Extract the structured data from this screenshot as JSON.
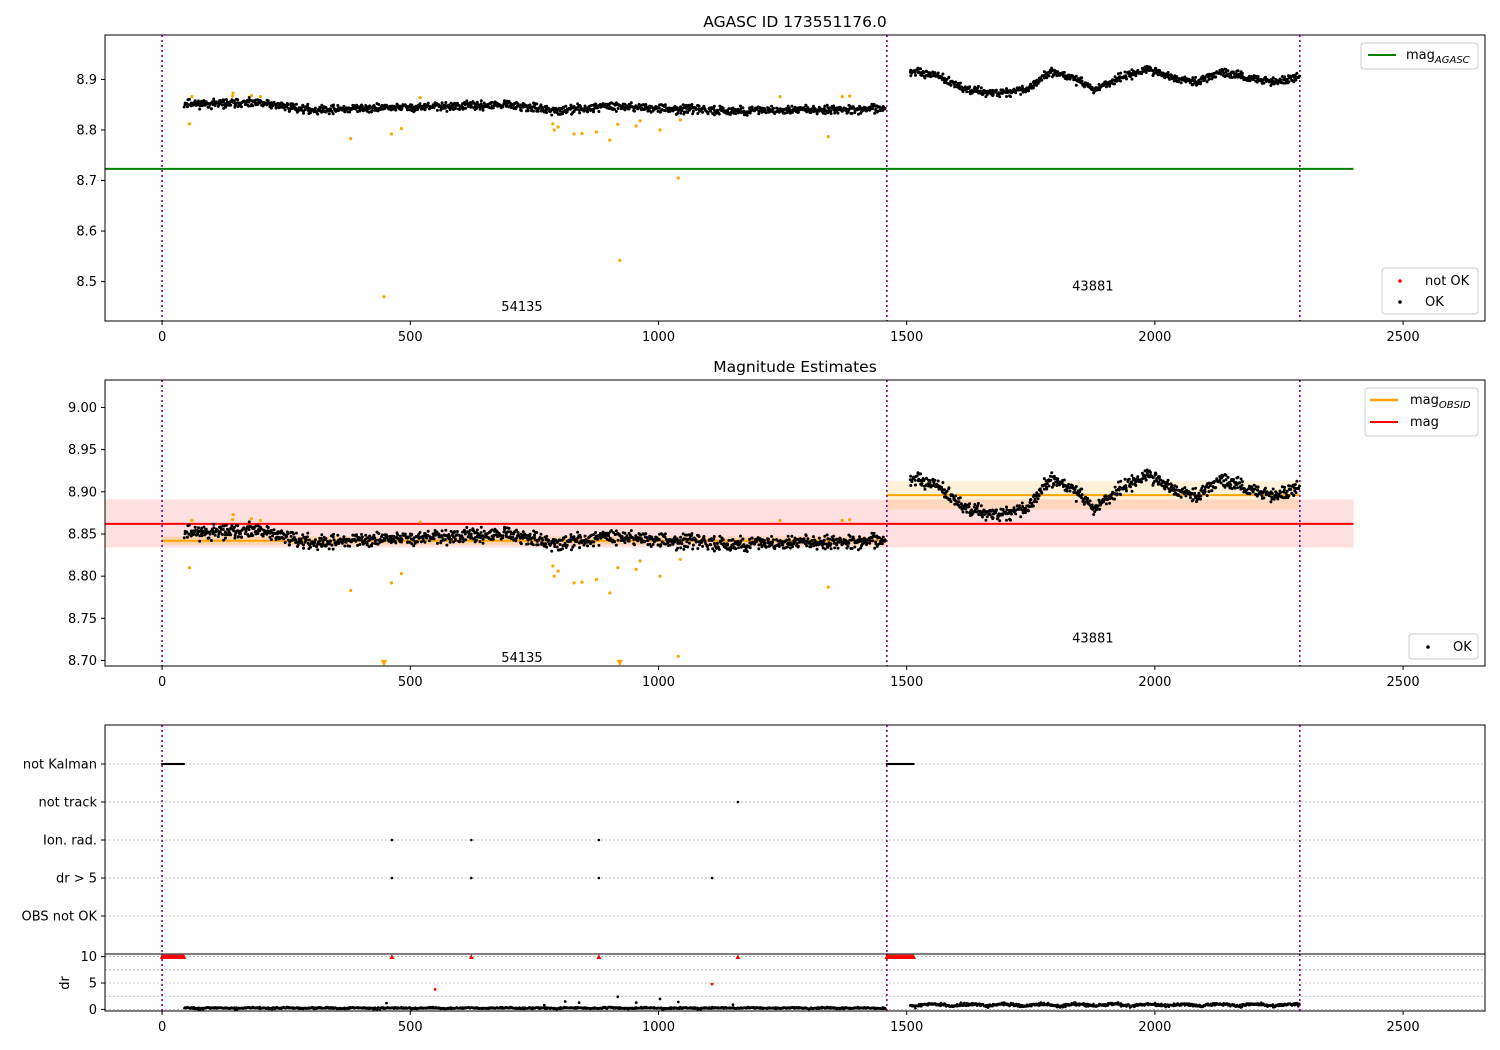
{
  "chart_data": [
    {
      "type": "scatter",
      "title": "AGASC ID 173551176.0",
      "xlabel": "",
      "ylabel": "",
      "xlim": [
        -115,
        2665
      ],
      "ylim": [
        8.422,
        8.988
      ],
      "xticks": [
        0,
        500,
        1000,
        1500,
        2000,
        2500
      ],
      "yticks": [
        8.5,
        8.6,
        8.7,
        8.8,
        8.9
      ],
      "ytick_labels": [
        "8.5",
        "8.6",
        "8.7",
        "8.8",
        "8.9"
      ],
      "vlines": [
        0,
        1460,
        2292
      ],
      "grid": false,
      "legends": [
        {
          "loc": "upper-right",
          "entries": [
            {
              "label": "mag",
              "sub": "AGASC",
              "color": "#008000",
              "kind": "line"
            }
          ]
        },
        {
          "loc": "lower-right",
          "entries": [
            {
              "label": "not OK",
              "color": "#ff0000",
              "kind": "dot"
            },
            {
              "label": "OK",
              "color": "#000000",
              "kind": "dot"
            }
          ]
        }
      ],
      "hlines": [
        {
          "name": "mag_AGASC",
          "y": 8.723,
          "x": [
            -115,
            2400
          ],
          "color": "#008000"
        }
      ],
      "obsids": [
        {
          "label": "54135",
          "x": 725,
          "y": 8.45
        },
        {
          "label": "43881",
          "x": 1875,
          "y": 8.49
        }
      ],
      "series": [
        {
          "color": "#000000",
          "segments": [
            {
              "x0": 45,
              "x1": 1458,
              "base": 8.845,
              "amp": 0.005,
              "noise": 0.007,
              "trend": [
                [
                  45,
                  8.852
                ],
                [
                  200,
                  8.853
                ],
                [
                  300,
                  8.84
                ],
                [
                  500,
                  8.845
                ],
                [
                  700,
                  8.849
                ],
                [
                  800,
                  8.838
                ],
                [
                  900,
                  8.848
                ],
                [
                  1000,
                  8.843
                ],
                [
                  1150,
                  8.838
                ],
                [
                  1300,
                  8.84
                ],
                [
                  1458,
                  8.842
                ]
              ]
            },
            {
              "x0": 1507,
              "x1": 2292,
              "base": 8.9,
              "noise": 0.007,
              "trend": [
                [
                  1507,
                  8.915
                ],
                [
                  1560,
                  8.908
                ],
                [
                  1620,
                  8.88
                ],
                [
                  1680,
                  8.872
                ],
                [
                  1740,
                  8.88
                ],
                [
                  1790,
                  8.915
                ],
                [
                  1830,
                  8.905
                ],
                [
                  1880,
                  8.88
                ],
                [
                  1930,
                  8.905
                ],
                [
                  1990,
                  8.92
                ],
                [
                  2050,
                  8.9
                ],
                [
                  2090,
                  8.895
                ],
                [
                  2130,
                  8.915
                ],
                [
                  2200,
                  8.9
                ],
                [
                  2250,
                  8.895
                ],
                [
                  2292,
                  8.905
                ]
              ]
            }
          ]
        },
        {
          "color": "#ffa500",
          "points": [
            [
              55,
              8.812
            ],
            [
              60,
              8.866
            ],
            [
              143,
              8.873
            ],
            [
              142,
              8.867
            ],
            [
              180,
              8.868
            ],
            [
              198,
              8.866
            ],
            [
              380,
              8.783
            ],
            [
              447,
              8.47
            ],
            [
              462,
              8.792
            ],
            [
              482,
              8.803
            ],
            [
              520,
              8.864
            ],
            [
              787,
              8.812
            ],
            [
              790,
              8.8
            ],
            [
              798,
              8.806
            ],
            [
              830,
              8.792
            ],
            [
              846,
              8.793
            ],
            [
              875,
              8.796
            ],
            [
              902,
              8.78
            ],
            [
              918,
              8.811
            ],
            [
              922,
              8.542
            ],
            [
              955,
              8.808
            ],
            [
              963,
              8.818
            ],
            [
              1003,
              8.8
            ],
            [
              1040,
              8.705
            ],
            [
              1044,
              8.82
            ],
            [
              1245,
              8.866
            ],
            [
              1342,
              8.787
            ],
            [
              1370,
              8.866
            ],
            [
              1385,
              8.867
            ]
          ]
        }
      ]
    },
    {
      "type": "scatter",
      "title": "Magnitude Estimates",
      "xlabel": "",
      "ylabel": "",
      "xlim": [
        -115,
        2665
      ],
      "ylim": [
        8.6935,
        9.0325
      ],
      "xticks": [
        0,
        500,
        1000,
        1500,
        2000,
        2500
      ],
      "yticks": [
        8.7,
        8.75,
        8.8,
        8.85,
        8.9,
        8.95,
        9.0
      ],
      "ytick_labels": [
        "8.70",
        "8.75",
        "8.80",
        "8.85",
        "8.90",
        "8.95",
        "9.00"
      ],
      "vlines": [
        0,
        1460,
        2292
      ],
      "grid": false,
      "legends": [
        {
          "loc": "upper-right",
          "entries": [
            {
              "label": "mag",
              "sub": "OBSID",
              "color": "#ffa500",
              "kind": "line"
            },
            {
              "label": "mag",
              "color": "#ff0000",
              "kind": "line"
            }
          ]
        },
        {
          "loc": "lower-right",
          "entries": [
            {
              "label": "OK",
              "color": "#000000",
              "kind": "dot"
            }
          ]
        }
      ],
      "bands": [
        {
          "x": [
            -115,
            2400
          ],
          "y": [
            8.834,
            8.891
          ],
          "color": "#ff0000",
          "opacity": 0.12
        },
        {
          "x": [
            0,
            1460
          ],
          "y": [
            8.837,
            8.847
          ],
          "color": "#ffa500",
          "opacity": 0.2
        },
        {
          "x": [
            1460,
            2292
          ],
          "y": [
            8.879,
            8.913
          ],
          "color": "#ffa500",
          "opacity": 0.15
        }
      ],
      "hlines": [
        {
          "name": "mag",
          "y": 8.862,
          "x": [
            -115,
            2400
          ],
          "color": "#ff0000"
        },
        {
          "name": "mag_OBSID",
          "y": 8.842,
          "x": [
            0,
            1460
          ],
          "color": "#ffa500"
        },
        {
          "name": "mag_OBSID",
          "y": 8.896,
          "x": [
            1460,
            2292
          ],
          "color": "#ffa500"
        }
      ],
      "obsids": [
        {
          "label": "54135",
          "x": 725,
          "y": 8.703
        },
        {
          "label": "43881",
          "x": 1875,
          "y": 8.726
        }
      ],
      "series": [
        {
          "color": "#000000",
          "segments": [
            {
              "x0": 45,
              "x1": 1458,
              "base": 8.845,
              "noise": 0.007,
              "trend": [
                [
                  45,
                  8.852
                ],
                [
                  200,
                  8.853
                ],
                [
                  300,
                  8.84
                ],
                [
                  500,
                  8.845
                ],
                [
                  700,
                  8.849
                ],
                [
                  800,
                  8.838
                ],
                [
                  900,
                  8.848
                ],
                [
                  1000,
                  8.843
                ],
                [
                  1150,
                  8.838
                ],
                [
                  1300,
                  8.84
                ],
                [
                  1458,
                  8.842
                ]
              ]
            },
            {
              "x0": 1507,
              "x1": 2292,
              "base": 8.9,
              "noise": 0.007,
              "trend": [
                [
                  1507,
                  8.915
                ],
                [
                  1560,
                  8.908
                ],
                [
                  1620,
                  8.88
                ],
                [
                  1680,
                  8.872
                ],
                [
                  1740,
                  8.88
                ],
                [
                  1790,
                  8.915
                ],
                [
                  1830,
                  8.905
                ],
                [
                  1880,
                  8.88
                ],
                [
                  1930,
                  8.905
                ],
                [
                  1990,
                  8.92
                ],
                [
                  2050,
                  8.9
                ],
                [
                  2090,
                  8.895
                ],
                [
                  2130,
                  8.915
                ],
                [
                  2200,
                  8.9
                ],
                [
                  2250,
                  8.895
                ],
                [
                  2292,
                  8.905
                ]
              ]
            }
          ]
        },
        {
          "color": "#ffa500",
          "points": [
            [
              55,
              8.81
            ],
            [
              60,
              8.866
            ],
            [
              143,
              8.873
            ],
            [
              142,
              8.867
            ],
            [
              180,
              8.868
            ],
            [
              198,
              8.866
            ],
            [
              380,
              8.783
            ],
            [
              462,
              8.792
            ],
            [
              482,
              8.803
            ],
            [
              520,
              8.864
            ],
            [
              787,
              8.812
            ],
            [
              790,
              8.8
            ],
            [
              798,
              8.806
            ],
            [
              830,
              8.792
            ],
            [
              846,
              8.793
            ],
            [
              875,
              8.796
            ],
            [
              902,
              8.78
            ],
            [
              918,
              8.81
            ],
            [
              955,
              8.808
            ],
            [
              963,
              8.818
            ],
            [
              1003,
              8.8
            ],
            [
              1040,
              8.705
            ],
            [
              1044,
              8.82
            ],
            [
              1245,
              8.866
            ],
            [
              1342,
              8.787
            ],
            [
              1370,
              8.866
            ],
            [
              1385,
              8.867
            ]
          ]
        },
        {
          "color": "#ffa500",
          "marker": "triangle-down",
          "points": [
            [
              447,
              8.697
            ],
            [
              922,
              8.697
            ]
          ]
        }
      ]
    },
    {
      "type": "scatter",
      "title": "",
      "xlabel": "",
      "ylabel": "",
      "categories": [
        "not Kalman",
        "not track",
        "Ion. rad.",
        "dr > 5",
        "OBS not OK"
      ],
      "xlim": [
        -115,
        2665
      ],
      "vlines": [
        0,
        1460,
        2292
      ],
      "grid": true,
      "flags": {
        "not Kalman": [
          [
            0,
            45
          ],
          [
            1460,
            1515
          ]
        ],
        "not track": [
          1160
        ],
        "Ion. rad.": [
          463,
          623,
          880
        ],
        "dr > 5": [
          463,
          623,
          880,
          1108
        ],
        "OBS not OK": []
      }
    },
    {
      "type": "scatter",
      "title": "",
      "xlabel": "",
      "ylabel": "dr",
      "xlim": [
        -115,
        2665
      ],
      "ylim": [
        -0.3,
        10.5
      ],
      "xticks": [
        0,
        500,
        1000,
        1500,
        2000,
        2500
      ],
      "yticks": [
        0,
        5,
        10
      ],
      "ytick_labels": [
        "0",
        "5",
        "10"
      ],
      "vlines": [
        0,
        1460,
        2292
      ],
      "grid": true,
      "series": [
        {
          "color": "#000000",
          "segments": [
            {
              "x0": 45,
              "x1": 1458,
              "base": 0.3,
              "noise": 0.25
            },
            {
              "x0": 1507,
              "x1": 2292,
              "base": 1.0,
              "noise": 0.5
            }
          ],
          "points": [
            [
              452,
              1.2
            ],
            [
              770,
              0.8
            ],
            [
              812,
              1.5
            ],
            [
              840,
              1.3
            ],
            [
              955,
              1.3
            ],
            [
              1003,
              2.0
            ],
            [
              1040,
              1.4
            ],
            [
              918,
              2.4
            ],
            [
              1150,
              0.9
            ]
          ]
        },
        {
          "color": "#ff0000",
          "points": [
            [
              550,
              3.8
            ],
            [
              1108,
              4.8
            ]
          ]
        },
        {
          "color": "#ff0000",
          "marker": "triangle-up",
          "points": [
            [
              463,
              10
            ],
            [
              623,
              10
            ],
            [
              880,
              10
            ],
            [
              1160,
              10
            ]
          ],
          "ranges": [
            [
              0,
              45
            ],
            [
              1460,
              1515
            ]
          ],
          "y": 10
        }
      ]
    }
  ]
}
